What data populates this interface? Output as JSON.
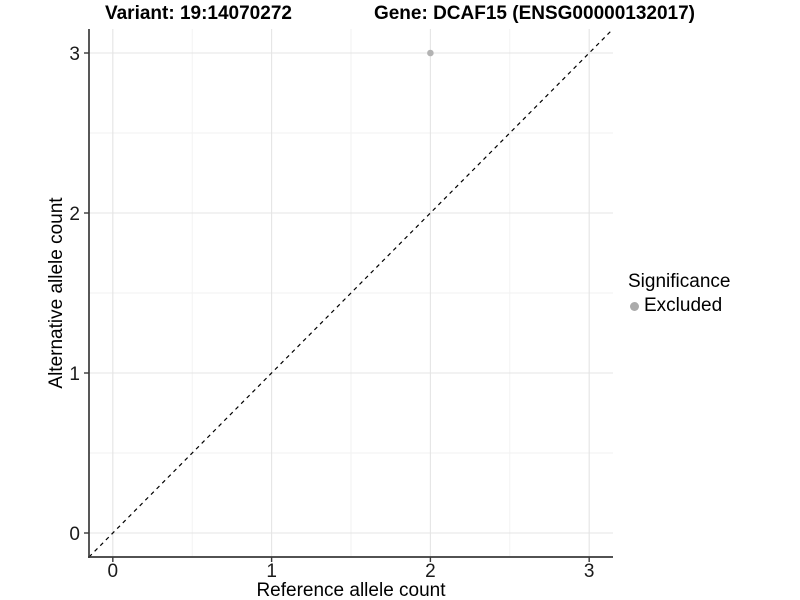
{
  "header": {
    "variant_title": "Variant: 19:14070272",
    "gene_title": "Gene: DCAF15 (ENSG00000132017)"
  },
  "chart_data": {
    "type": "scatter",
    "title": "Variant: 19:14070272    Gene: DCAF15 (ENSG00000132017)",
    "xlabel": "Reference allele count",
    "ylabel": "Alternative allele count",
    "xlim": [
      -0.15,
      3.15
    ],
    "ylim": [
      -0.15,
      3.15
    ],
    "x_ticks": [
      0,
      1,
      2,
      3
    ],
    "y_ticks": [
      0,
      1,
      2,
      3
    ],
    "x_minor_ticks": [
      0.5,
      1.5,
      2.5
    ],
    "y_minor_ticks": [
      0.5,
      1.5,
      2.5
    ],
    "grid": true,
    "points": [
      {
        "x": 2,
        "y": 3,
        "significance": "Excluded"
      }
    ],
    "reference_line": {
      "type": "identity",
      "style": "dashed",
      "from": [
        -0.15,
        -0.15
      ],
      "to": [
        3.15,
        3.15
      ]
    },
    "legend": {
      "title": "Significance",
      "position": "right",
      "items": [
        {
          "label": "Excluded",
          "color": "#b3b3b3"
        }
      ]
    }
  },
  "colors": {
    "background": "#ffffff",
    "point": "#b3b3b3",
    "legend_dot": "#ababab",
    "grid_major": "#e4e4e4",
    "grid_minor": "#f1f1f1",
    "axis": "#3a3a3a",
    "tick_label": "#1a1a1a",
    "dashed_line": "#000000"
  }
}
